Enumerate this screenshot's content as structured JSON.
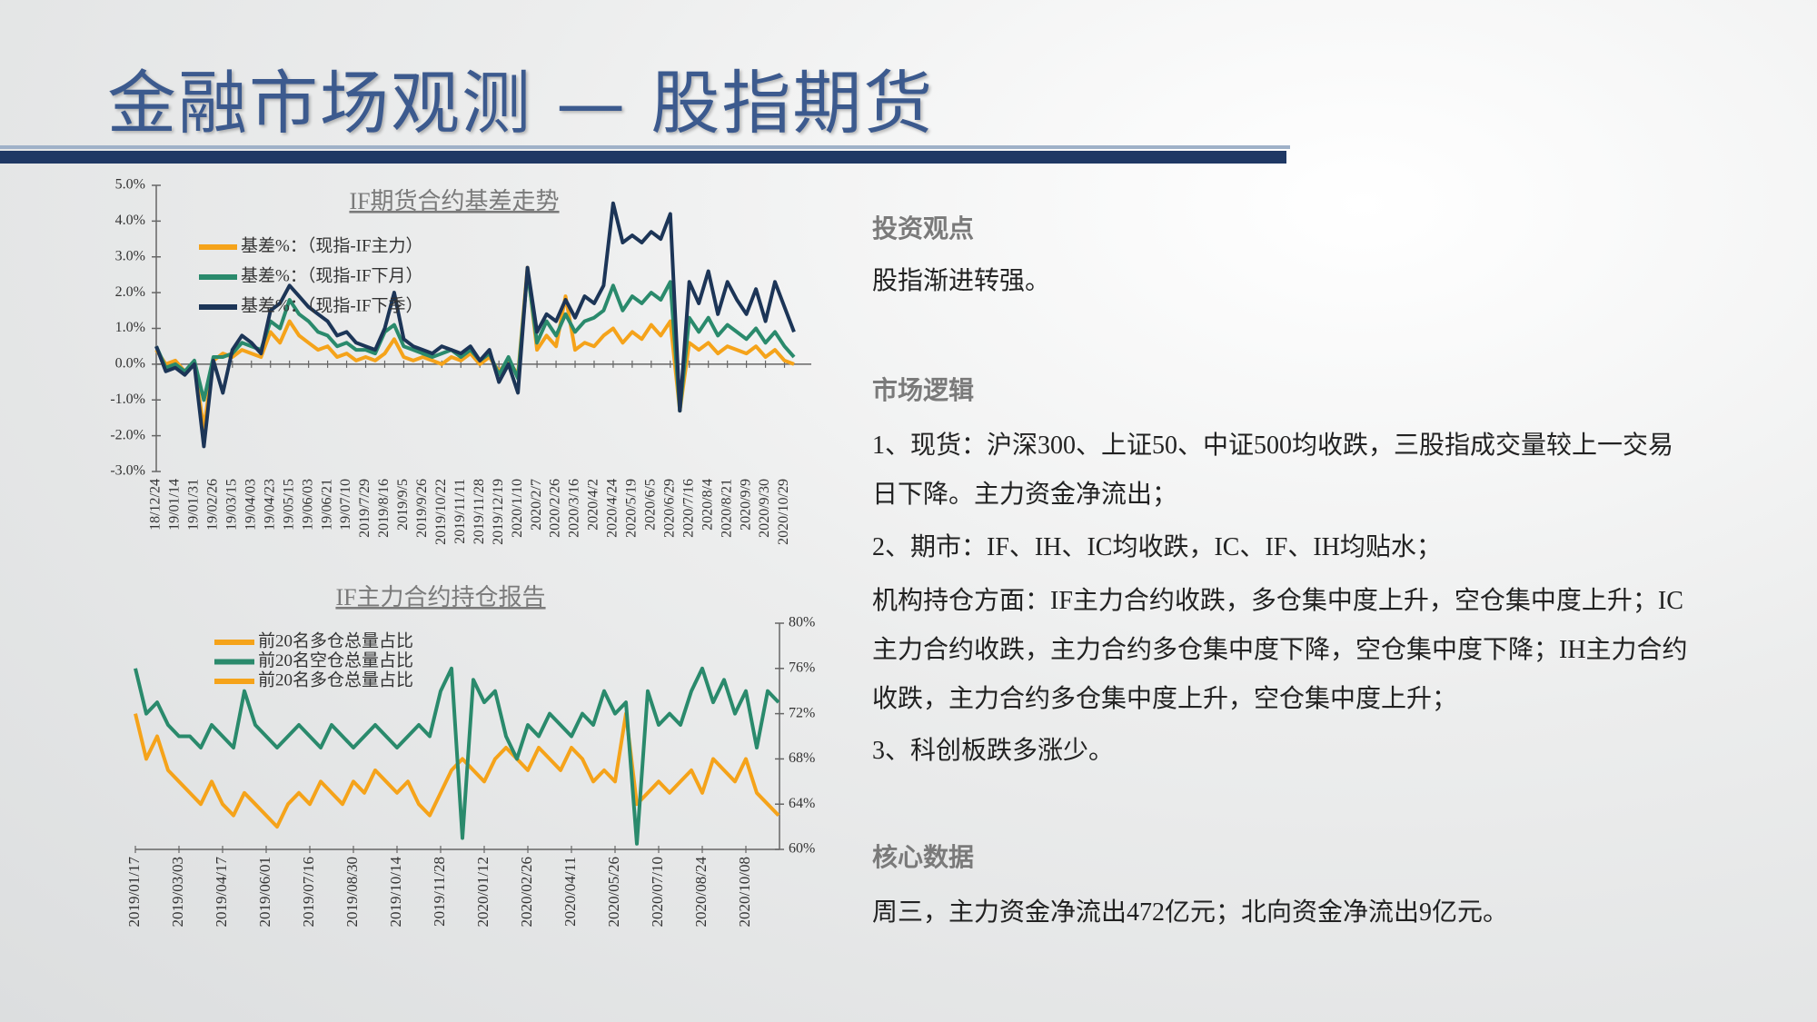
{
  "title": "金融市场观测 — 股指期货",
  "sections": [
    {
      "heading": "投资观点",
      "paragraphs": [
        "股指渐进转强。"
      ]
    },
    {
      "heading": "市场逻辑",
      "paragraphs": [
        "1、现货：沪深300、上证50、中证500均收跌，三股指成交量较上一交易日下降。主力资金净流出；",
        "2、期市：IF、IH、IC均收跌，IC、IF、IH均贴水；",
        "机构持仓方面：IF主力合约收跌，多仓集中度上升，空仓集中度上升；IC主力合约收跌，主力合约多仓集中度下降，空仓集中度下降；IH主力合约收跌，主力合约多仓集中度上升，空仓集中度上升；",
        "3、科创板跌多涨少。"
      ]
    },
    {
      "heading": "核心数据",
      "paragraphs": [
        "周三，主力资金净流出472亿元；北向资金净流出9亿元。"
      ]
    }
  ],
  "chart_data": [
    {
      "type": "line",
      "title": "IF期货合约基差走势",
      "categories": [
        "18/12/24",
        null,
        "19/01/14",
        null,
        "19/01/31",
        null,
        "19/02/26",
        null,
        "19/03/15",
        null,
        "19/04/03",
        null,
        "19/04/23",
        null,
        "19/05/15",
        null,
        "19/06/03",
        null,
        "19/06/21",
        null,
        "19/07/10",
        null,
        "2019/7/29",
        null,
        "2019/8/16",
        null,
        "2019/9/5",
        null,
        "2019/9/26",
        null,
        "2019/10/22",
        null,
        "2019/11/11",
        null,
        "2019/11/28",
        null,
        "2019/12/19",
        null,
        "2020/1/10",
        null,
        "2020/2/7",
        null,
        "2020/2/26",
        null,
        "2020/3/16",
        null,
        "2020/4/2",
        null,
        "2020/4/24",
        null,
        "2020/5/19",
        null,
        "2020/6/5",
        null,
        "2020/6/29",
        null,
        "2020/7/16",
        null,
        "2020/8/4",
        null,
        "2020/8/21",
        null,
        "2020/9/9",
        null,
        "2020/9/30",
        null,
        "2020/10/29",
        null
      ],
      "series": [
        {
          "name": "基差%：（现指-IF主力）",
          "color": "#f5a31a",
          "values": [
            0.4,
            0.0,
            0.1,
            -0.2,
            0.0,
            -1.8,
            0.1,
            0.3,
            0.2,
            0.4,
            0.3,
            0.2,
            0.9,
            0.6,
            1.2,
            0.8,
            0.6,
            0.4,
            0.5,
            0.2,
            0.3,
            0.1,
            0.2,
            0.1,
            0.3,
            0.7,
            0.2,
            0.1,
            0.2,
            0.1,
            0.0,
            0.2,
            0.1,
            0.3,
            0.0,
            0.2,
            -0.2,
            0.1,
            -0.3,
            2.7,
            0.4,
            0.8,
            0.5,
            1.9,
            0.4,
            0.6,
            0.5,
            0.8,
            1.0,
            0.6,
            0.9,
            0.7,
            1.1,
            0.8,
            1.2,
            -1.3,
            0.6,
            0.4,
            0.6,
            0.3,
            0.5,
            0.4,
            0.3,
            0.5,
            0.2,
            0.4,
            0.1,
            0.0
          ]
        },
        {
          "name": "基差%：（现指-IF下月）",
          "color": "#2a8a6c",
          "values": [
            0.5,
            -0.1,
            0.0,
            -0.2,
            0.1,
            -1.0,
            0.2,
            0.2,
            0.3,
            0.6,
            0.5,
            0.4,
            1.2,
            1.0,
            1.8,
            1.4,
            1.2,
            0.9,
            0.8,
            0.5,
            0.6,
            0.4,
            0.4,
            0.3,
            0.9,
            1.1,
            0.5,
            0.4,
            0.3,
            0.2,
            0.3,
            0.4,
            0.2,
            0.4,
            0.1,
            0.3,
            -0.3,
            0.2,
            -0.4,
            2.6,
            0.6,
            1.2,
            0.8,
            1.4,
            0.9,
            1.2,
            1.3,
            1.5,
            2.2,
            1.5,
            1.9,
            1.7,
            2.0,
            1.8,
            2.3,
            -1.3,
            1.3,
            0.9,
            1.3,
            0.8,
            1.1,
            0.9,
            0.7,
            1.0,
            0.6,
            0.9,
            0.5,
            0.2
          ]
        },
        {
          "name": "基差%：（现指-IF下季）",
          "color": "#1c3557",
          "values": [
            0.5,
            -0.2,
            -0.1,
            -0.3,
            0.0,
            -2.3,
            0.1,
            -0.8,
            0.4,
            0.8,
            0.6,
            0.3,
            1.5,
            1.7,
            2.2,
            1.9,
            1.6,
            1.4,
            1.2,
            0.8,
            0.9,
            0.6,
            0.5,
            0.4,
            1.0,
            2.0,
            0.7,
            0.5,
            0.4,
            0.3,
            0.5,
            0.4,
            0.3,
            0.5,
            0.1,
            0.4,
            -0.5,
            0.0,
            -0.8,
            2.7,
            0.9,
            1.4,
            1.2,
            1.8,
            1.3,
            1.9,
            1.7,
            2.2,
            4.5,
            3.4,
            3.6,
            3.4,
            3.7,
            3.5,
            4.2,
            -1.3,
            2.3,
            1.7,
            2.6,
            1.4,
            2.3,
            1.8,
            1.4,
            2.1,
            1.2,
            2.3,
            1.6,
            0.9
          ]
        }
      ],
      "ylim": [
        -3,
        5
      ],
      "yticks": [
        {
          "value": -3,
          "label": "-3.0%"
        },
        {
          "value": -2,
          "label": "-2.0%"
        },
        {
          "value": -1,
          "label": "-1.0%"
        },
        {
          "value": 0,
          "label": "0.0%"
        },
        {
          "value": 1,
          "label": "1.0%"
        },
        {
          "value": 2,
          "label": "2.0%"
        },
        {
          "value": 3,
          "label": "3.0%"
        },
        {
          "value": 4,
          "label": "4.0%"
        },
        {
          "value": 5,
          "label": "5.0%"
        }
      ],
      "y_axis_side": "left",
      "grid": false
    },
    {
      "type": "line",
      "title": "IF主力合约持仓报告",
      "categories": [
        "2019/01/17",
        null,
        null,
        null,
        "2019/03/03",
        null,
        null,
        null,
        "2019/04/17",
        null,
        null,
        null,
        "2019/06/01",
        null,
        null,
        null,
        "2019/07/16",
        null,
        null,
        null,
        "2019/08/30",
        null,
        null,
        null,
        "2019/10/14",
        null,
        null,
        null,
        "2019/11/28",
        null,
        null,
        null,
        "2020/01/12",
        null,
        null,
        null,
        "2020/02/26",
        null,
        null,
        null,
        "2020/04/11",
        null,
        null,
        null,
        "2020/05/26",
        null,
        null,
        null,
        "2020/07/10",
        null,
        null,
        null,
        "2020/08/24",
        null,
        null,
        null,
        "2020/10/08",
        null,
        null,
        null
      ],
      "series": [
        {
          "name": "前20名多仓总量占比",
          "color": "#f5a31a",
          "values": [
            72,
            68,
            70,
            67,
            66,
            65,
            64,
            66,
            64,
            63,
            65,
            64,
            63,
            62,
            64,
            65,
            64,
            66,
            65,
            64,
            66,
            65,
            67,
            66,
            65,
            66,
            64,
            63,
            65,
            67,
            68,
            67,
            66,
            68,
            69,
            68,
            67,
            69,
            68,
            67,
            69,
            68,
            66,
            67,
            66,
            72,
            64,
            65,
            66,
            65,
            66,
            67,
            65,
            68,
            67,
            66,
            68,
            65,
            64,
            63
          ]
        },
        {
          "name": "前20名空仓总量占比",
          "color": "#2a8a6c",
          "values": [
            76,
            72,
            73,
            71,
            70,
            70,
            69,
            71,
            70,
            69,
            74,
            71,
            70,
            69,
            70,
            71,
            70,
            69,
            71,
            70,
            69,
            70,
            71,
            70,
            69,
            70,
            71,
            70,
            74,
            76,
            61,
            75,
            73,
            74,
            70,
            68,
            71,
            70,
            72,
            71,
            70,
            72,
            71,
            74,
            72,
            73,
            60.5,
            74,
            71,
            72,
            71,
            74,
            76,
            73,
            75,
            72,
            74,
            69,
            74,
            73
          ]
        }
      ],
      "extra_legend_entries": [
        {
          "name": "前20名多仓总量占比",
          "color": "#f5a31a"
        }
      ],
      "ylim": [
        60,
        80
      ],
      "yticks": [
        {
          "value": 60,
          "label": "60%"
        },
        {
          "value": 64,
          "label": "64%"
        },
        {
          "value": 68,
          "label": "68%"
        },
        {
          "value": 72,
          "label": "72%"
        },
        {
          "value": 76,
          "label": "76%"
        },
        {
          "value": 80,
          "label": "80%"
        }
      ],
      "y_axis_side": "right",
      "grid": false
    }
  ]
}
